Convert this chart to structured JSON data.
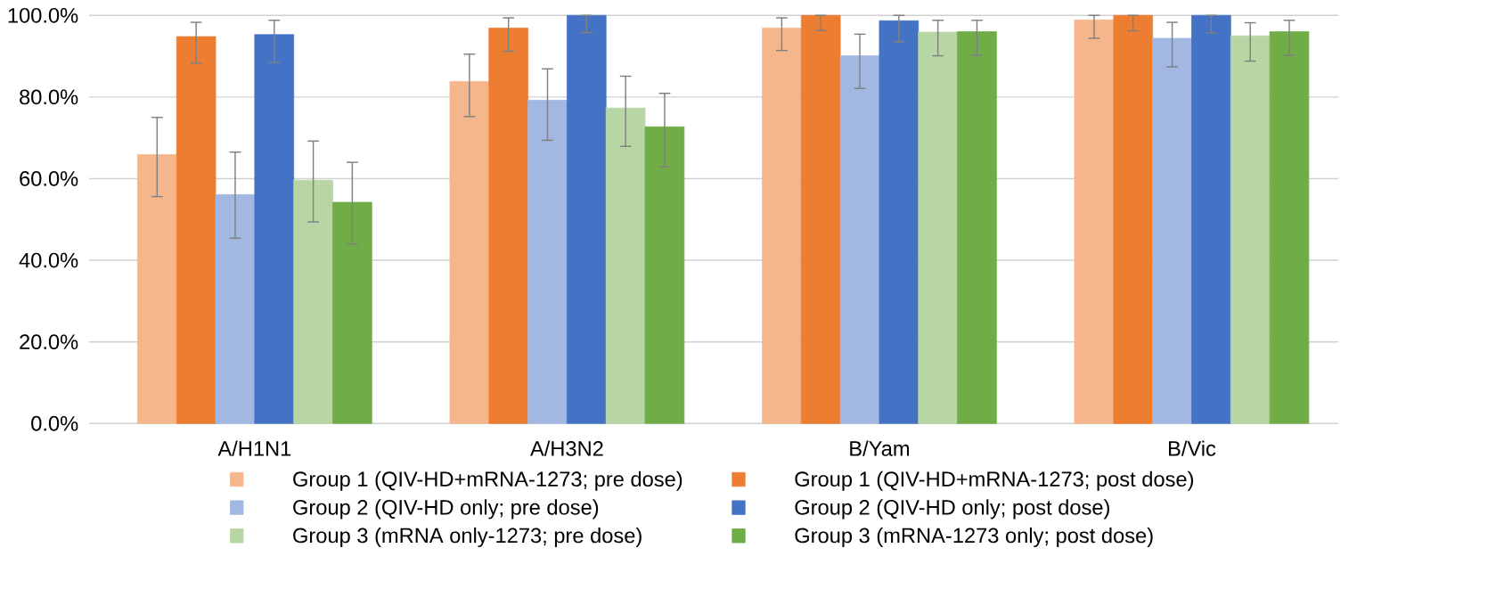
{
  "chart_data": {
    "type": "bar",
    "categories": [
      "A/H1N1",
      "A/H3N2",
      "B/Yam",
      "B/Vic"
    ],
    "ylim": [
      0,
      100
    ],
    "yticks": [
      {
        "value": 0,
        "label": "0.0%"
      },
      {
        "value": 20,
        "label": "20.0%"
      },
      {
        "value": 40,
        "label": "40.0%"
      },
      {
        "value": 60,
        "label": "60.0%"
      },
      {
        "value": 80,
        "label": "80.0%"
      },
      {
        "value": 100,
        "label": "100.0%"
      }
    ],
    "grid": "y",
    "legend": "bottom",
    "series": [
      {
        "name": "Group 1 (QIV-HD+mRNA-1273; pre dose)",
        "color": "#f6b68c",
        "values": [
          65.9,
          83.8,
          96.9,
          98.9
        ],
        "errors": [
          [
            55.6,
            75.0
          ],
          [
            75.2,
            90.5
          ],
          [
            91.4,
            99.4
          ],
          [
            94.4,
            100
          ]
        ]
      },
      {
        "name": "Group 1 (QIV-HD+mRNA-1273; post dose)",
        "color": "#ed7d31",
        "values": [
          94.8,
          96.9,
          100,
          100
        ],
        "errors": [
          [
            88.3,
            98.3
          ],
          [
            91.2,
            99.4
          ],
          [
            96.3,
            100
          ],
          [
            96.2,
            100
          ]
        ]
      },
      {
        "name": "Group 2 (QIV-HD only; pre dose)",
        "color": "#a2b8e2",
        "values": [
          56.1,
          79.2,
          90.1,
          94.4
        ],
        "errors": [
          [
            45.4,
            66.5
          ],
          [
            69.4,
            86.9
          ],
          [
            82.1,
            95.4
          ],
          [
            87.4,
            98.3
          ]
        ]
      },
      {
        "name": "Group 2 (QIV-HD only; post dose)",
        "color": "#4472c4",
        "values": [
          95.3,
          100,
          98.7,
          100
        ],
        "errors": [
          [
            88.5,
            98.8
          ],
          [
            95.8,
            100
          ],
          [
            93.5,
            100
          ],
          [
            95.7,
            100
          ]
        ]
      },
      {
        "name": "Group 3 (mRNA only-1273; pre dose)",
        "color": "#b8d6a3",
        "values": [
          59.6,
          77.3,
          95.9,
          95.0
        ],
        "errors": [
          [
            49.4,
            69.2
          ],
          [
            67.9,
            85.1
          ],
          [
            90.1,
            98.8
          ],
          [
            88.8,
            98.2
          ]
        ]
      },
      {
        "name": "Group 3 (mRNA-1273 only; post dose)",
        "color": "#70ad47",
        "values": [
          54.2,
          72.7,
          96.0,
          96.0
        ],
        "errors": [
          [
            44.0,
            64.0
          ],
          [
            62.9,
            80.9
          ],
          [
            90.2,
            98.8
          ],
          [
            90.2,
            98.8
          ]
        ]
      }
    ]
  }
}
